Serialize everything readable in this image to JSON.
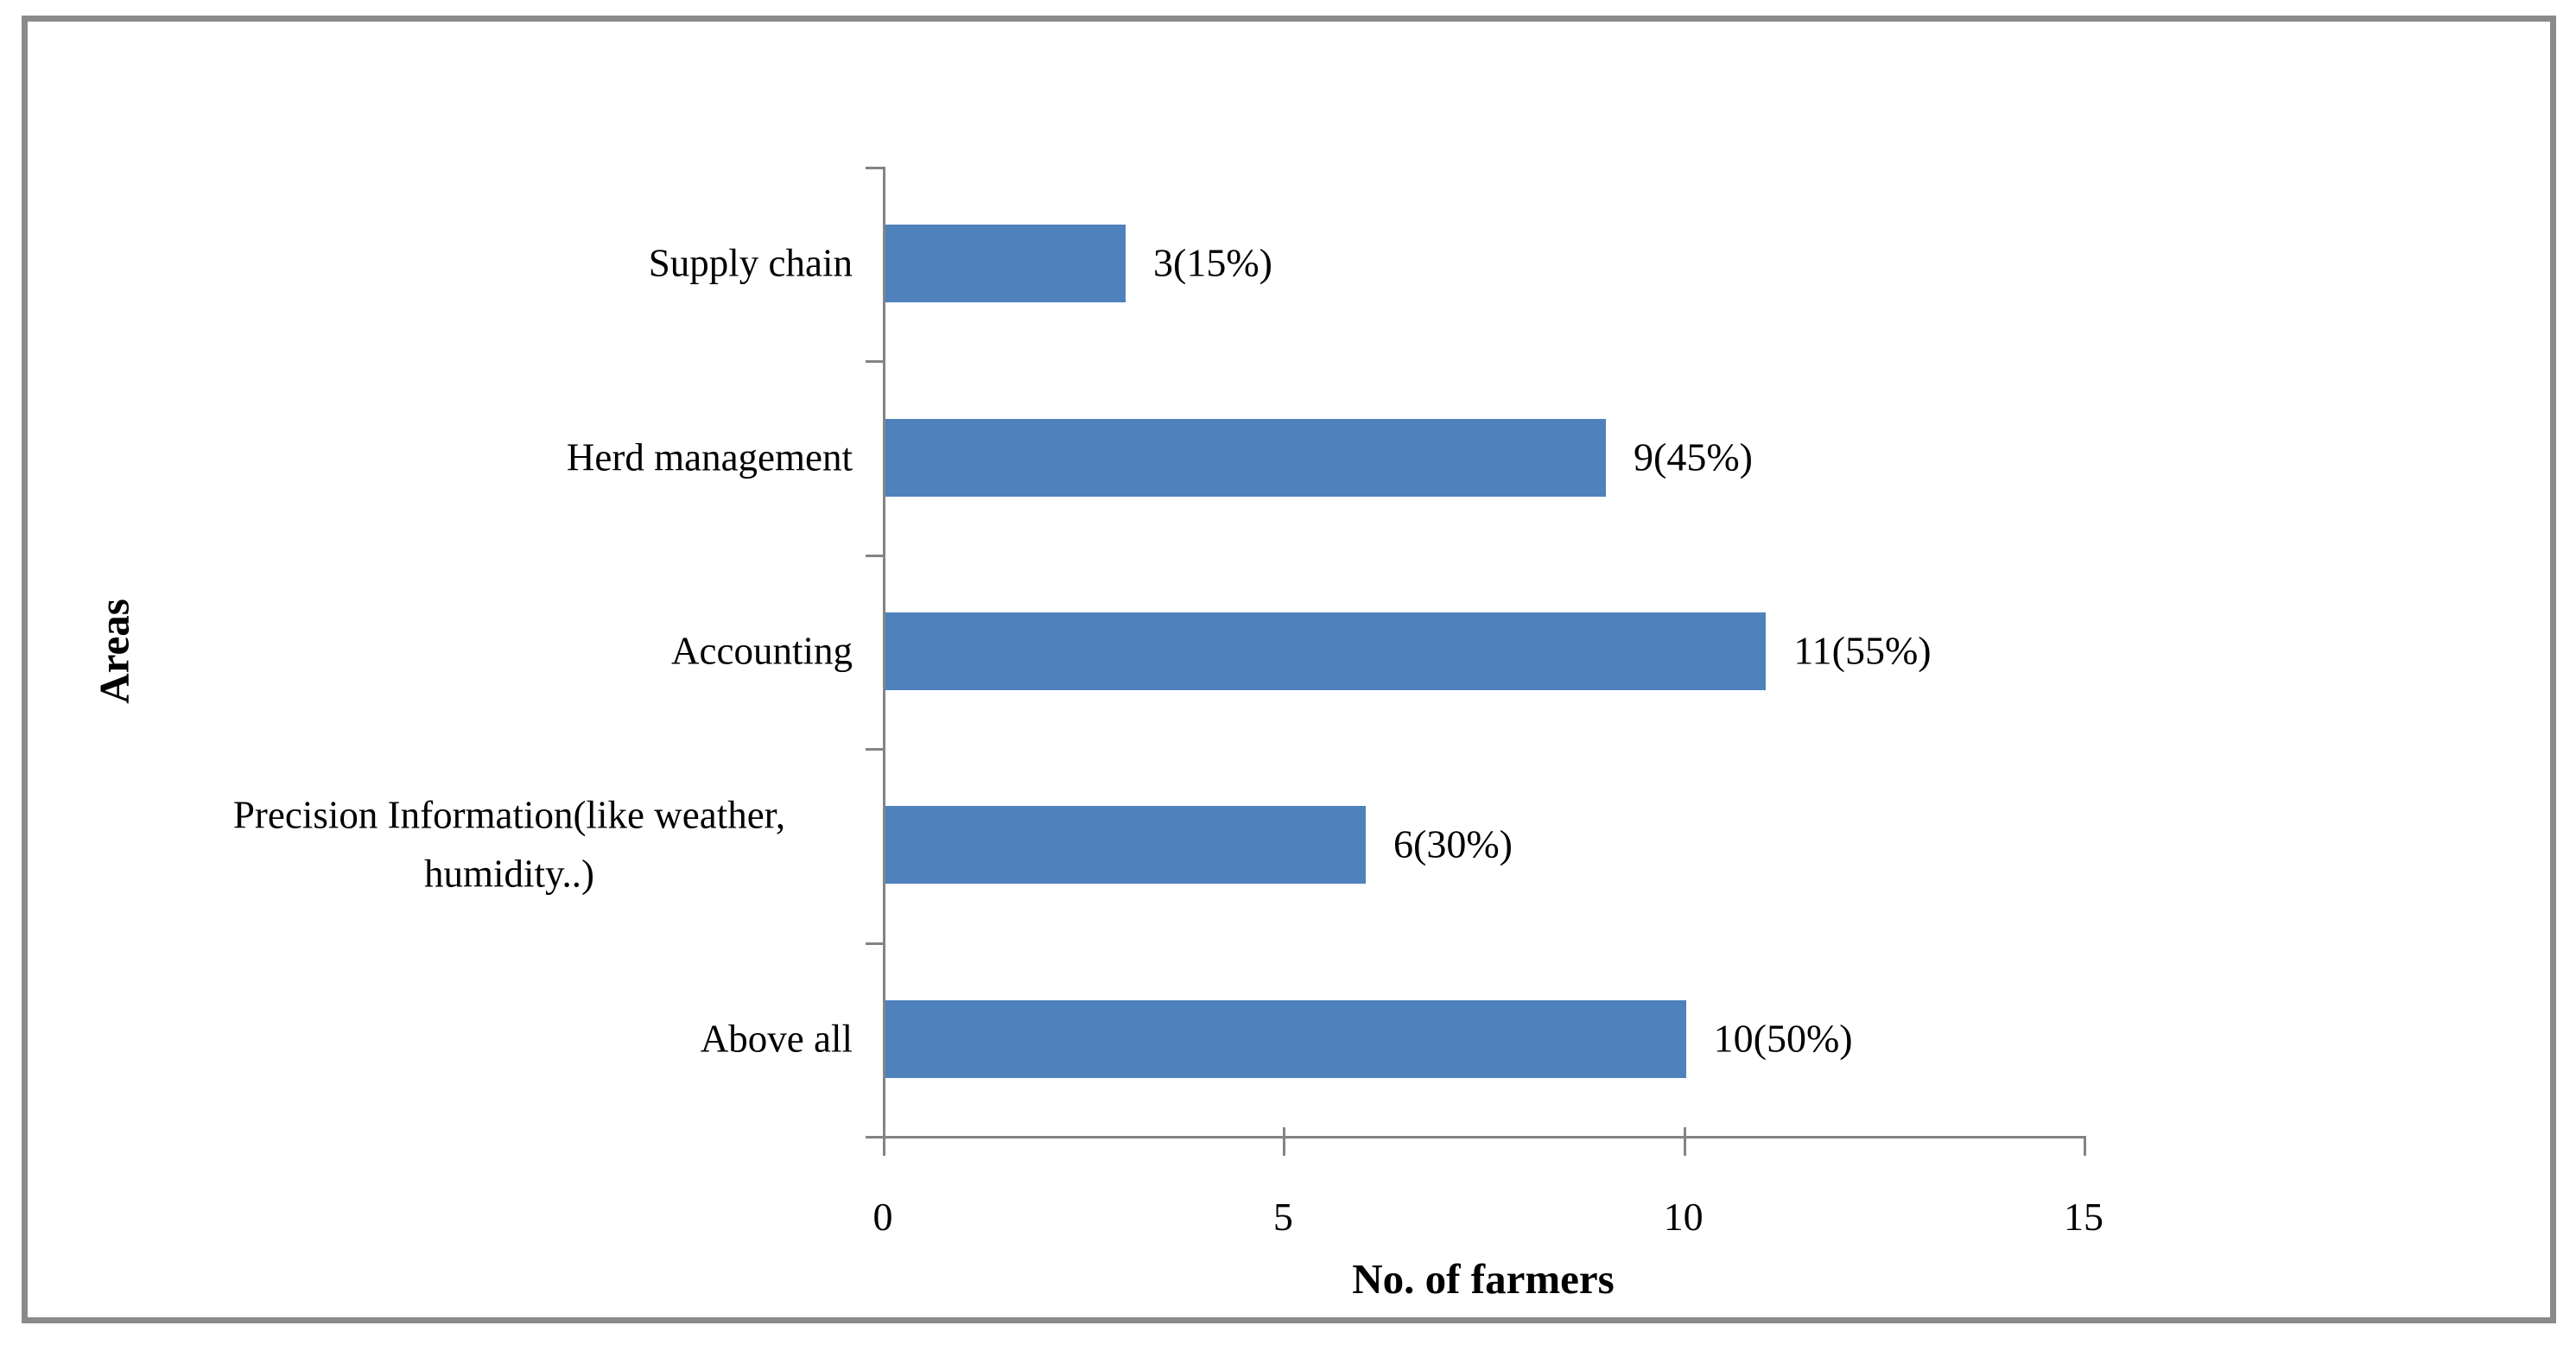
{
  "chart_data": {
    "type": "bar",
    "orientation": "horizontal",
    "title": "",
    "xlabel": "No. of farmers",
    "ylabel": "Areas",
    "categories": [
      "Supply chain",
      "Herd management",
      "Accounting",
      "Precision Information(like weather, humidity..)",
      "Above all"
    ],
    "values": [
      3,
      9,
      11,
      6,
      10
    ],
    "data_labels": [
      "3(15%)",
      "9(45%)",
      "11(55%)",
      "6(30%)",
      "10(50%)"
    ],
    "xlim": [
      0,
      15
    ],
    "xticks": [
      0,
      5,
      10,
      15
    ],
    "grid": false,
    "legend_position": "none",
    "bar_color": "#4F81BD",
    "axis_color": "#848484",
    "frame_border_color": "#8a8a8a",
    "text_color": "#000000"
  }
}
